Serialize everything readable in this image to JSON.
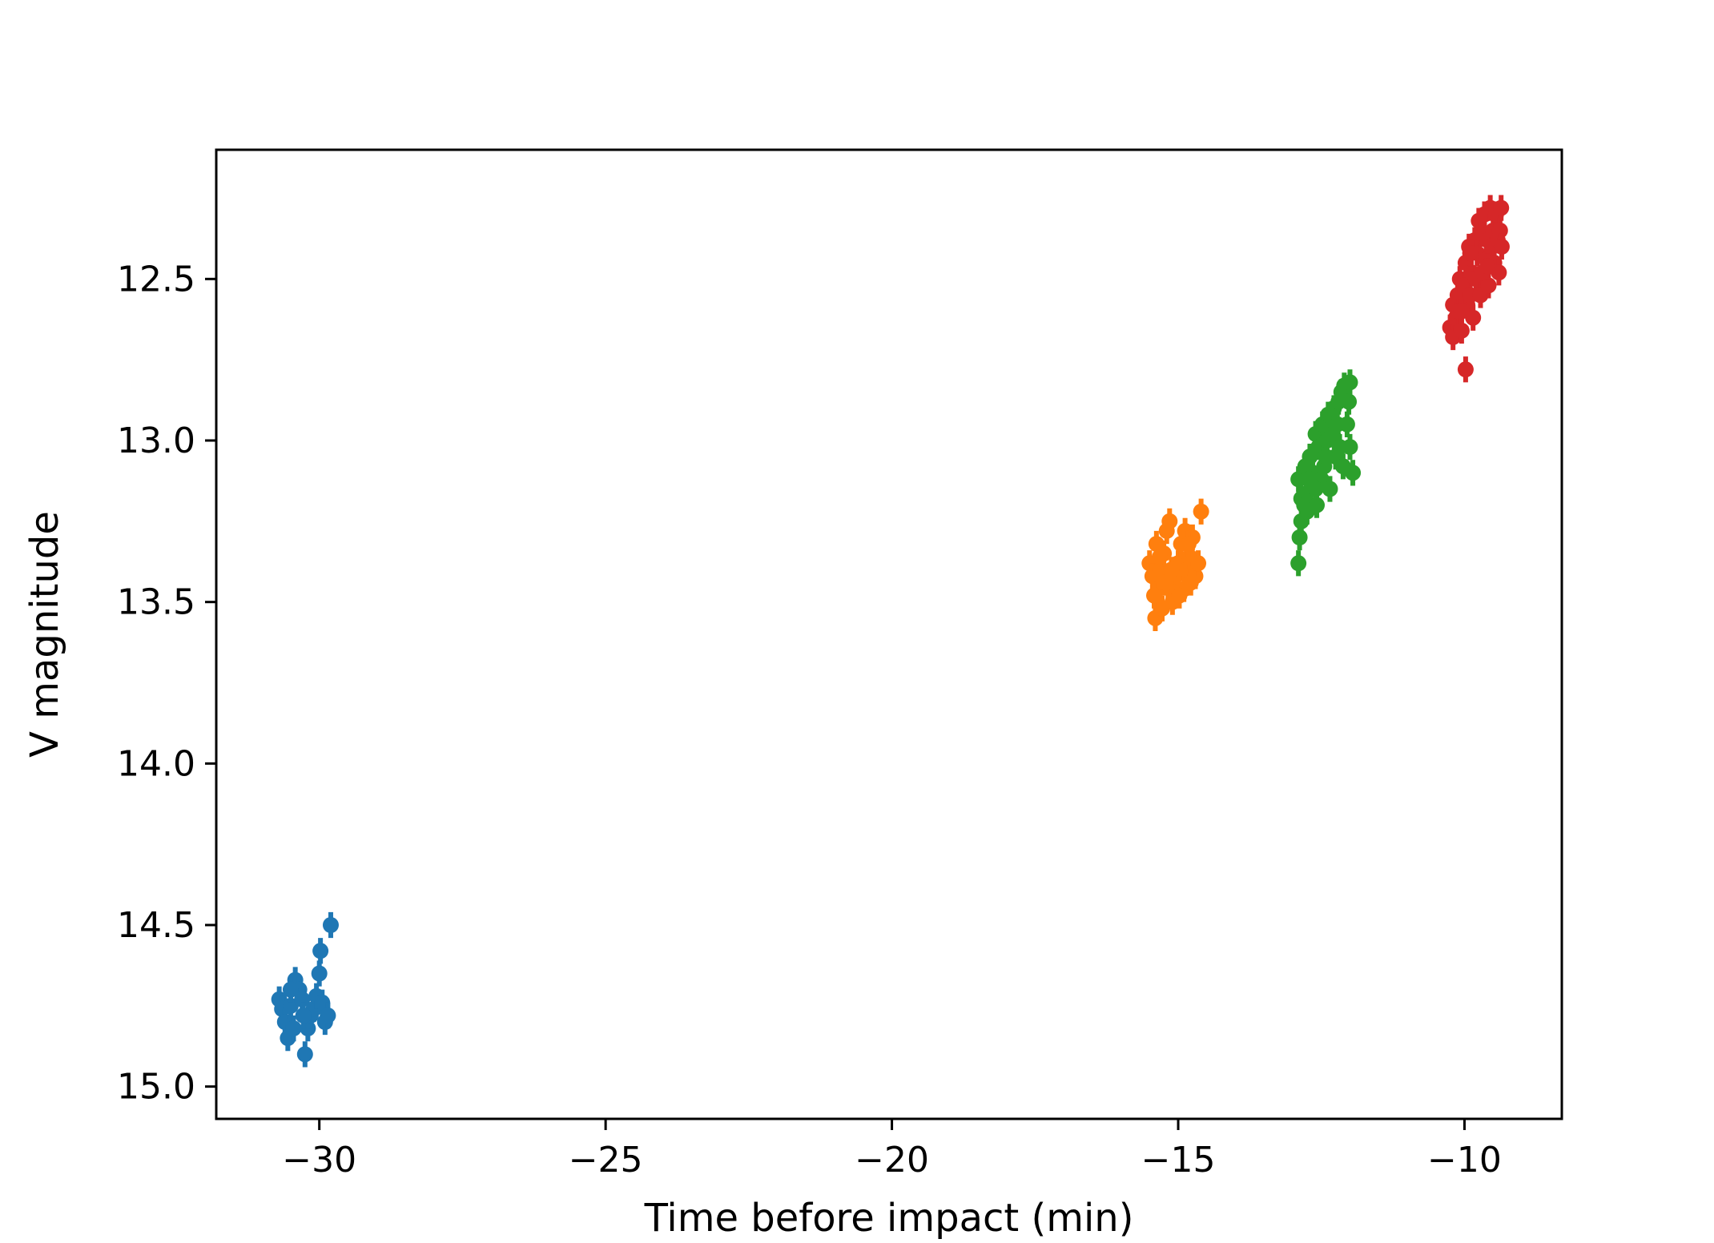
{
  "chart_data": {
    "type": "scatter",
    "title": "",
    "xlabel": "Time before impact (min)",
    "ylabel": "V magnitude",
    "xlim": [
      -31.8,
      -8.3
    ],
    "ylim": [
      15.1,
      12.1
    ],
    "y_inverted": true,
    "grid": false,
    "xticks": [
      -30,
      -25,
      -20,
      -15,
      -10
    ],
    "xtick_labels": [
      "−30",
      "−25",
      "−20",
      "−15",
      "−10"
    ],
    "yticks": [
      12.5,
      13.0,
      13.5,
      14.0,
      14.5,
      15.0
    ],
    "ytick_labels": [
      "12.5",
      "13.0",
      "13.5",
      "14.0",
      "14.5",
      "15.0"
    ],
    "error_bar_size": 0.04,
    "series": [
      {
        "color": "#1f77b4",
        "points": [
          [
            -30.7,
            14.73
          ],
          [
            -30.65,
            14.76
          ],
          [
            -30.6,
            14.8
          ],
          [
            -30.55,
            14.85
          ],
          [
            -30.5,
            14.75
          ],
          [
            -30.45,
            14.82
          ],
          [
            -30.42,
            14.67
          ],
          [
            -30.35,
            14.7
          ],
          [
            -30.3,
            14.73
          ],
          [
            -30.25,
            14.9
          ],
          [
            -30.2,
            14.82
          ],
          [
            -30.15,
            14.78
          ],
          [
            -30.1,
            14.76
          ],
          [
            -30.05,
            14.72
          ],
          [
            -30.0,
            14.65
          ],
          [
            -29.98,
            14.58
          ],
          [
            -29.95,
            14.74
          ],
          [
            -29.9,
            14.8
          ],
          [
            -29.85,
            14.78
          ],
          [
            -29.8,
            14.5
          ],
          [
            -30.5,
            14.7
          ],
          [
            -30.28,
            14.78
          ]
        ]
      },
      {
        "color": "#ff7f0e",
        "points": [
          [
            -15.5,
            13.38
          ],
          [
            -15.45,
            13.42
          ],
          [
            -15.4,
            13.55
          ],
          [
            -15.38,
            13.32
          ],
          [
            -15.35,
            13.46
          ],
          [
            -15.3,
            13.4
          ],
          [
            -15.28,
            13.52
          ],
          [
            -15.25,
            13.35
          ],
          [
            -15.2,
            13.28
          ],
          [
            -15.18,
            13.45
          ],
          [
            -15.15,
            13.25
          ],
          [
            -15.1,
            13.5
          ],
          [
            -15.05,
            13.42
          ],
          [
            -15.0,
            13.38
          ],
          [
            -14.95,
            13.32
          ],
          [
            -14.9,
            13.46
          ],
          [
            -14.88,
            13.28
          ],
          [
            -14.85,
            13.4
          ],
          [
            -14.8,
            13.36
          ],
          [
            -14.78,
            13.44
          ],
          [
            -14.75,
            13.3
          ],
          [
            -14.7,
            13.42
          ],
          [
            -14.65,
            13.38
          ],
          [
            -14.6,
            13.22
          ],
          [
            -15.42,
            13.48
          ],
          [
            -15.32,
            13.36
          ],
          [
            -15.12,
            13.4
          ],
          [
            -14.98,
            13.48
          ],
          [
            -14.82,
            13.32
          ],
          [
            -15.22,
            13.44
          ]
        ]
      },
      {
        "color": "#2ca02c",
        "points": [
          [
            -12.9,
            13.38
          ],
          [
            -12.88,
            13.3
          ],
          [
            -12.85,
            13.25
          ],
          [
            -12.9,
            13.12
          ],
          [
            -12.85,
            13.18
          ],
          [
            -12.8,
            13.2
          ],
          [
            -12.78,
            13.08
          ],
          [
            -12.75,
            13.22
          ],
          [
            -12.7,
            13.05
          ],
          [
            -12.68,
            13.15
          ],
          [
            -12.65,
            13.1
          ],
          [
            -12.6,
            12.98
          ],
          [
            -12.58,
            13.2
          ],
          [
            -12.55,
            13.02
          ],
          [
            -12.5,
            13.12
          ],
          [
            -12.48,
            12.95
          ],
          [
            -12.45,
            13.08
          ],
          [
            -12.4,
            13.0
          ],
          [
            -12.38,
            12.92
          ],
          [
            -12.35,
            13.15
          ],
          [
            -12.3,
            12.98
          ],
          [
            -12.28,
            12.9
          ],
          [
            -12.25,
            13.05
          ],
          [
            -12.2,
            12.88
          ],
          [
            -12.18,
            13.02
          ],
          [
            -12.15,
            12.85
          ],
          [
            -12.12,
            13.08
          ],
          [
            -12.1,
            12.83
          ],
          [
            -12.05,
            12.95
          ],
          [
            -12.02,
            12.88
          ],
          [
            -12.0,
            12.82
          ],
          [
            -11.95,
            13.1
          ],
          [
            -12.0,
            13.02
          ],
          [
            -12.6,
            13.15
          ],
          [
            -12.72,
            13.12
          ],
          [
            -12.42,
            13.05
          ],
          [
            -12.22,
            12.95
          ]
        ]
      },
      {
        "color": "#d62728",
        "points": [
          [
            -10.25,
            12.65
          ],
          [
            -10.2,
            12.68
          ],
          [
            -10.2,
            12.58
          ],
          [
            -10.15,
            12.62
          ],
          [
            -10.12,
            12.55
          ],
          [
            -10.1,
            12.6
          ],
          [
            -10.08,
            12.5
          ],
          [
            -10.05,
            12.66
          ],
          [
            -10.0,
            12.52
          ],
          [
            -9.98,
            12.45
          ],
          [
            -9.95,
            12.58
          ],
          [
            -9.92,
            12.4
          ],
          [
            -9.9,
            12.55
          ],
          [
            -9.88,
            12.48
          ],
          [
            -9.85,
            12.62
          ],
          [
            -9.82,
            12.38
          ],
          [
            -9.8,
            12.5
          ],
          [
            -9.78,
            12.42
          ],
          [
            -9.75,
            12.32
          ],
          [
            -9.72,
            12.55
          ],
          [
            -9.7,
            12.36
          ],
          [
            -9.68,
            12.48
          ],
          [
            -9.65,
            12.3
          ],
          [
            -9.62,
            12.44
          ],
          [
            -9.6,
            12.38
          ],
          [
            -9.58,
            12.52
          ],
          [
            -9.55,
            12.28
          ],
          [
            -9.52,
            12.4
          ],
          [
            -9.5,
            12.35
          ],
          [
            -9.48,
            12.45
          ],
          [
            -9.45,
            12.3
          ],
          [
            -9.42,
            12.38
          ],
          [
            -9.4,
            12.48
          ],
          [
            -9.38,
            12.35
          ],
          [
            -9.36,
            12.28
          ],
          [
            -9.35,
            12.4
          ],
          [
            -9.98,
            12.78
          ],
          [
            -10.05,
            12.6
          ],
          [
            -9.9,
            12.42
          ],
          [
            -9.6,
            12.46
          ]
        ]
      }
    ]
  }
}
